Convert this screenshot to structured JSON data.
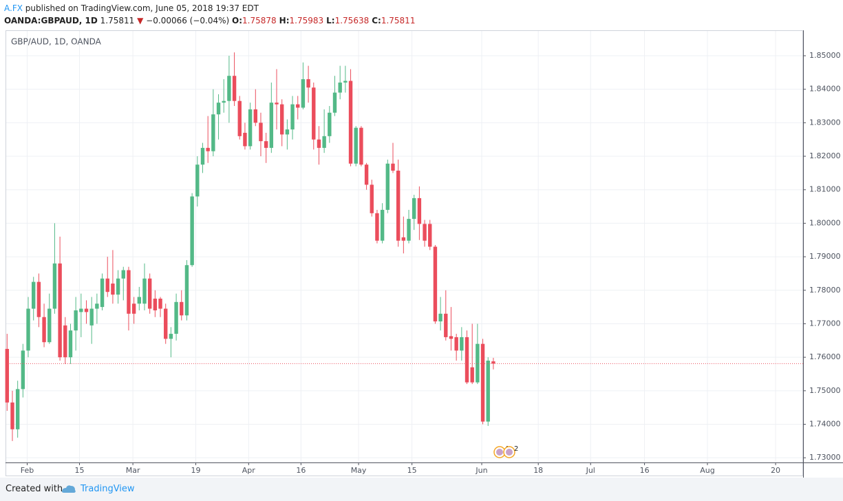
{
  "header": {
    "publisher": "A.FX",
    "published": "published on TradingView.com, June 05, 2018 19:37 EDT",
    "symbol": "OANDA:GBPAUD, 1D",
    "last": "1.75811",
    "direction": "▼",
    "change": "−0.00066 (−0.04%)",
    "ohlc": [
      {
        "label": "O:",
        "value": "1.75878"
      },
      {
        "label": "H:",
        "value": "1.75983"
      },
      {
        "label": "L:",
        "value": "1.75638"
      },
      {
        "label": "C:",
        "value": "1.75811"
      }
    ]
  },
  "footer": {
    "prefix": "Created with",
    "brand": "TradingView"
  },
  "chart_data": {
    "type": "candlestick",
    "title": "GBP/AUD, 1D, OANDA",
    "up_color": "#53b987",
    "down_color": "#eb4d5c",
    "x": [
      0,
      1,
      2,
      3,
      4,
      5,
      6,
      7,
      8,
      9,
      10,
      11,
      12,
      13,
      14,
      15,
      16,
      17,
      18,
      19,
      20,
      21,
      22,
      23,
      24,
      25,
      26,
      27,
      28,
      29,
      30,
      31,
      32,
      33,
      34,
      35,
      36,
      37,
      38,
      39,
      40,
      41,
      42,
      43,
      44,
      45,
      46,
      47,
      48,
      49,
      50,
      51,
      52,
      53,
      54,
      55,
      56,
      57,
      58,
      59,
      60,
      61,
      62,
      63,
      64,
      65,
      66,
      67,
      68,
      69,
      70,
      71,
      72,
      73,
      74,
      75,
      76,
      77,
      78,
      79,
      80,
      81,
      82,
      83,
      84,
      85,
      86,
      87,
      88,
      89,
      90,
      91,
      92
    ],
    "open": [
      1.7625,
      1.7465,
      1.7385,
      1.7505,
      1.762,
      1.7745,
      1.7825,
      1.772,
      1.7645,
      1.7745,
      1.788,
      1.7695,
      1.76,
      1.768,
      1.7735,
      1.7745,
      1.7695,
      1.7745,
      1.775,
      1.7835,
      1.782,
      1.7787,
      1.7835,
      1.786,
      1.776,
      1.776,
      1.776,
      1.7835,
      1.7775,
      1.7775,
      1.7745,
      1.7655,
      1.767,
      1.7765,
      1.7725,
      1.7875,
      1.808,
      1.8175,
      1.8225,
      1.8215,
      1.8325,
      1.836,
      1.8365,
      1.844,
      1.8365,
      1.827,
      1.823,
      1.834,
      1.83,
      1.8245,
      1.8225,
      1.836,
      1.8355,
      1.8265,
      1.828,
      1.8355,
      1.8345,
      1.843,
      1.8405,
      1.825,
      1.8225,
      1.826,
      1.833,
      1.839,
      1.842,
      1.8425,
      1.8178,
      1.8285,
      1.8175,
      1.8115,
      1.803,
      1.7948,
      1.804,
      1.8178,
      1.8157,
      1.7958,
      1.7948,
      1.8013,
      1.8075,
      1.7998,
      1.7998,
      1.793,
      1.7707,
      1.773,
      1.7663,
      1.766,
      1.762,
      1.766,
      1.757,
      1.7525,
      1.764,
      1.7408,
      1.75878
    ],
    "high": [
      1.767,
      1.75,
      1.753,
      1.764,
      1.778,
      1.784,
      1.785,
      1.776,
      1.779,
      1.8,
      1.796,
      1.772,
      1.77,
      1.778,
      1.779,
      1.777,
      1.778,
      1.779,
      1.785,
      1.79,
      1.792,
      1.786,
      1.787,
      1.787,
      1.778,
      1.781,
      1.788,
      1.785,
      1.78,
      1.778,
      1.776,
      1.769,
      1.779,
      1.78,
      1.789,
      1.809,
      1.82,
      1.824,
      1.832,
      1.84,
      1.8385,
      1.843,
      1.85,
      1.851,
      1.838,
      1.83,
      1.836,
      1.84,
      1.833,
      1.827,
      1.842,
      1.846,
      1.837,
      1.831,
      1.838,
      1.838,
      1.848,
      1.847,
      1.842,
      1.829,
      1.834,
      1.835,
      1.844,
      1.847,
      1.847,
      1.846,
      1.829,
      1.829,
      1.818,
      1.813,
      1.804,
      1.806,
      1.819,
      1.824,
      1.819,
      1.802,
      1.804,
      1.8085,
      1.811,
      1.801,
      1.801,
      1.7935,
      1.778,
      1.78,
      1.775,
      1.767,
      1.769,
      1.768,
      1.77,
      1.77,
      1.7655,
      1.76,
      1.75983
    ],
    "low": [
      1.744,
      1.735,
      1.736,
      1.748,
      1.76,
      1.771,
      1.769,
      1.763,
      1.764,
      1.773,
      1.759,
      1.758,
      1.758,
      1.762,
      1.766,
      1.77,
      1.764,
      1.77,
      1.774,
      1.778,
      1.776,
      1.776,
      1.777,
      1.768,
      1.77,
      1.774,
      1.774,
      1.773,
      1.772,
      1.772,
      1.764,
      1.76,
      1.765,
      1.771,
      1.771,
      1.787,
      1.805,
      1.815,
      1.818,
      1.82,
      1.825,
      1.833,
      1.83,
      1.835,
      1.825,
      1.822,
      1.822,
      1.829,
      1.82,
      1.818,
      1.821,
      1.828,
      1.823,
      1.822,
      1.825,
      1.831,
      1.834,
      1.836,
      1.822,
      1.8175,
      1.821,
      1.824,
      1.832,
      1.837,
      1.839,
      1.817,
      1.817,
      1.817,
      1.81,
      1.802,
      1.794,
      1.794,
      1.803,
      1.815,
      1.793,
      1.791,
      1.794,
      1.798,
      1.795,
      1.793,
      1.792,
      1.77,
      1.768,
      1.765,
      1.762,
      1.759,
      1.759,
      1.752,
      1.752,
      1.752,
      1.74,
      1.7395,
      1.75638
    ],
    "close": [
      1.7465,
      1.7385,
      1.7505,
      1.762,
      1.7745,
      1.7825,
      1.772,
      1.7645,
      1.7745,
      1.788,
      1.76,
      1.76,
      1.768,
      1.774,
      1.7745,
      1.7735,
      1.7745,
      1.776,
      1.7835,
      1.7795,
      1.7787,
      1.7835,
      1.786,
      1.773,
      1.773,
      1.778,
      1.7835,
      1.7745,
      1.774,
      1.7745,
      1.7655,
      1.767,
      1.7765,
      1.7725,
      1.7875,
      1.808,
      1.8175,
      1.8225,
      1.8215,
      1.8325,
      1.836,
      1.8365,
      1.844,
      1.8365,
      1.826,
      1.823,
      1.834,
      1.83,
      1.8245,
      1.8225,
      1.836,
      1.8355,
      1.8265,
      1.828,
      1.8355,
      1.8345,
      1.843,
      1.8405,
      1.825,
      1.8225,
      1.826,
      1.833,
      1.839,
      1.842,
      1.8425,
      1.8178,
      1.8285,
      1.8175,
      1.8115,
      1.803,
      1.7948,
      1.804,
      1.8178,
      1.8157,
      1.7948,
      1.7948,
      1.8013,
      1.8075,
      1.7998,
      1.7948,
      1.793,
      1.7707,
      1.773,
      1.766,
      1.7655,
      1.762,
      1.766,
      1.7525,
      1.7525,
      1.764,
      1.7408,
      1.759,
      1.75811
    ],
    "xlim": [
      -0.3,
      150.6
    ],
    "xticks": [
      {
        "value": 3.8,
        "label": "Feb"
      },
      {
        "value": 13.7,
        "label": "15"
      },
      {
        "value": 23.8,
        "label": "Mar"
      },
      {
        "value": 35.7,
        "label": "19"
      },
      {
        "value": 45.7,
        "label": "Apr"
      },
      {
        "value": 55.6,
        "label": "16"
      },
      {
        "value": 66.5,
        "label": "May"
      },
      {
        "value": 76.6,
        "label": "15"
      },
      {
        "value": 89.8,
        "label": "Jun"
      },
      {
        "value": 100.5,
        "label": "18"
      },
      {
        "value": 110.4,
        "label": "Jul"
      },
      {
        "value": 120.6,
        "label": "16"
      },
      {
        "value": 132.5,
        "label": "Aug"
      },
      {
        "value": 145.4,
        "label": "20"
      }
    ],
    "ylim": [
      1.7286,
      1.8576
    ],
    "yticks": [
      {
        "value": 1.73,
        "label": "1.73000"
      },
      {
        "value": 1.74,
        "label": "1.74000"
      },
      {
        "value": 1.75,
        "label": "1.75000"
      },
      {
        "value": 1.76,
        "label": "1.76000"
      },
      {
        "value": 1.77,
        "label": "1.77000"
      },
      {
        "value": 1.78,
        "label": "1.78000"
      },
      {
        "value": 1.79,
        "label": "1.79000"
      },
      {
        "value": 1.8,
        "label": "1.80000"
      },
      {
        "value": 1.81,
        "label": "1.81000"
      },
      {
        "value": 1.82,
        "label": "1.82000"
      },
      {
        "value": 1.83,
        "label": "1.83000"
      },
      {
        "value": 1.84,
        "label": "1.84000"
      },
      {
        "value": 1.85,
        "label": "1.85000"
      }
    ],
    "grid": true,
    "price_line_color": "#eb4d5c",
    "events": [
      "4",
      "2"
    ]
  }
}
